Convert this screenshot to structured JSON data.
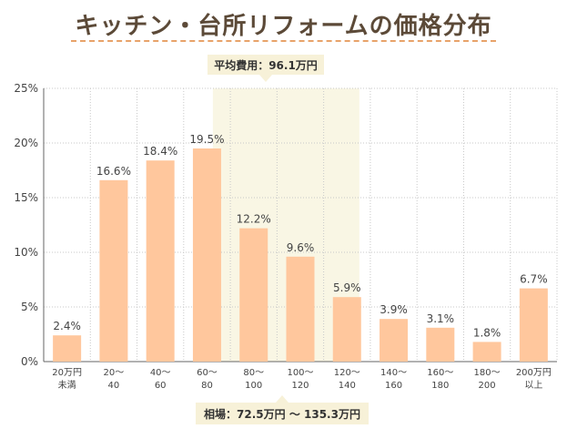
{
  "title": "キッチン・台所リフォームの価格分布",
  "average_badge": "平均費用：96.1万円",
  "range_badge": "相場：72.5万円 〜 135.3万円",
  "chart_data": {
    "type": "bar",
    "categories": [
      [
        "20万円",
        "未満"
      ],
      [
        "20〜",
        "40"
      ],
      [
        "40〜",
        "60"
      ],
      [
        "60〜",
        "80"
      ],
      [
        "80〜",
        "100"
      ],
      [
        "100〜",
        "120"
      ],
      [
        "120〜",
        "140"
      ],
      [
        "140〜",
        "160"
      ],
      [
        "160〜",
        "180"
      ],
      [
        "180〜",
        "200"
      ],
      [
        "200万円",
        "以上"
      ]
    ],
    "values": [
      2.4,
      16.6,
      18.4,
      19.5,
      12.2,
      9.6,
      5.9,
      3.9,
      3.1,
      1.8,
      6.7
    ],
    "value_labels": [
      "2.4%",
      "16.6%",
      "18.4%",
      "19.5%",
      "12.2%",
      "9.6%",
      "5.9%",
      "3.9%",
      "3.1%",
      "1.8%",
      "6.7%"
    ],
    "yticks": [
      0,
      5,
      10,
      15,
      20,
      25
    ],
    "ytick_labels": [
      "0%",
      "5%",
      "10%",
      "15%",
      "20%",
      "25%"
    ],
    "ylim": [
      0,
      25
    ],
    "highlight_range": {
      "from_value_man_yen": 72.5,
      "to_value_man_yen": 135.3
    },
    "bar_color": "#ffc79d",
    "highlight_color": "#f9f6e4",
    "grid": true
  }
}
